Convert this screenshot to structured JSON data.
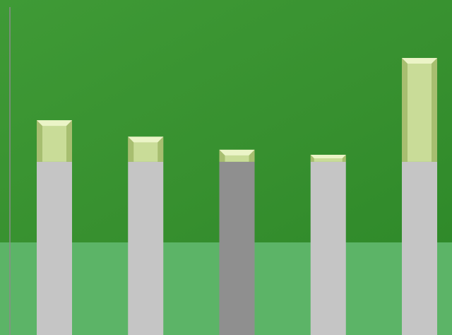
{
  "chart_data": {
    "type": "bar",
    "stacked": true,
    "categories": [
      "",
      "",
      "",
      "",
      ""
    ],
    "title": "",
    "xlabel": "",
    "ylabel": "",
    "ylim": [
      0,
      100
    ],
    "grid": false,
    "legend": "none",
    "series": [
      {
        "values": [
          51.7,
          51.7,
          51.7,
          51.7,
          51.7
        ]
      },
      {
        "values": [
          12.4,
          7.5,
          3.6,
          2.1,
          31.0
        ]
      }
    ]
  },
  "colors": {
    "background_upper": "#3a9232",
    "background_lower": "#5cb467",
    "base_bar": "#c5c5c5",
    "base_bar_highlight": "#8f8f8f",
    "top_bar": "#c9dc98",
    "top_bar_bevel_light": "#eef6cc",
    "top_bar_bevel_dark": "#7e9a40",
    "axis_line": "#8c8c8c"
  }
}
